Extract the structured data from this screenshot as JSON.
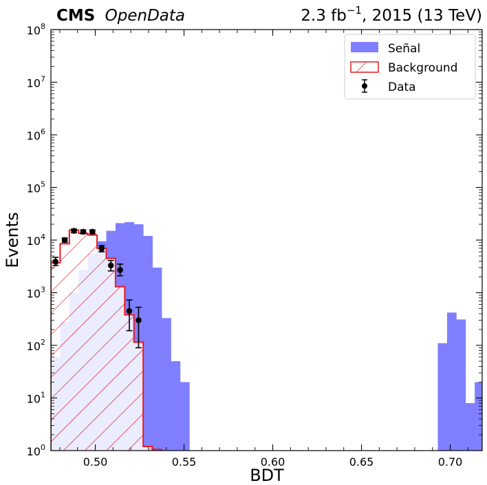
{
  "chart_data": {
    "type": "bar",
    "header": {
      "experiment": "CMS",
      "label": "OpenData",
      "lumi_prefix": "2.3 fb",
      "lumi_exponent": "−1",
      "lumi_suffix": ", 2015 (13 TeV)"
    },
    "xlabel": "BDT",
    "ylabel": "Events",
    "xlim": [
      0.475,
      0.718
    ],
    "ylim": [
      1,
      100000000
    ],
    "yscale": "log",
    "bin_width": 0.0052,
    "x_ticks": [
      {
        "value": 0.5,
        "label": "0.50"
      },
      {
        "value": 0.55,
        "label": "0.55"
      },
      {
        "value": 0.6,
        "label": "0.60"
      },
      {
        "value": 0.65,
        "label": "0.65"
      },
      {
        "value": 0.7,
        "label": "0.70"
      }
    ],
    "y_ticks": [
      {
        "value": 1,
        "base": "10",
        "exp": "0"
      },
      {
        "value": 10,
        "base": "10",
        "exp": "1"
      },
      {
        "value": 100,
        "base": "10",
        "exp": "2"
      },
      {
        "value": 1000,
        "base": "10",
        "exp": "3"
      },
      {
        "value": 10000,
        "base": "10",
        "exp": "4"
      },
      {
        "value": 100000,
        "base": "10",
        "exp": "5"
      },
      {
        "value": 1000000,
        "base": "10",
        "exp": "6"
      },
      {
        "value": 10000000,
        "base": "10",
        "exp": "7"
      },
      {
        "value": 100000000,
        "base": "10",
        "exp": "8"
      }
    ],
    "legend": {
      "position": "top-right",
      "items": [
        {
          "key": "signal",
          "label": "Señal"
        },
        {
          "key": "background",
          "label": "Background"
        },
        {
          "key": "data",
          "label": "Data"
        }
      ]
    },
    "colors": {
      "signal": "#7f7fff",
      "background": "#e8191f",
      "data": "#000000"
    },
    "signal": [
      {
        "x0": 0.475,
        "x1": 0.4802,
        "y": 60
      },
      {
        "x0": 0.4802,
        "x1": 0.4854,
        "y": 280
      },
      {
        "x0": 0.4854,
        "x1": 0.4906,
        "y": 1000
      },
      {
        "x0": 0.4906,
        "x1": 0.4958,
        "y": 2700
      },
      {
        "x0": 0.4958,
        "x1": 0.501,
        "y": 5500
      },
      {
        "x0": 0.501,
        "x1": 0.5062,
        "y": 9500
      },
      {
        "x0": 0.5062,
        "x1": 0.5114,
        "y": 15000
      },
      {
        "x0": 0.5114,
        "x1": 0.5166,
        "y": 21000
      },
      {
        "x0": 0.5166,
        "x1": 0.5218,
        "y": 22000
      },
      {
        "x0": 0.5218,
        "x1": 0.527,
        "y": 20000
      },
      {
        "x0": 0.527,
        "x1": 0.5322,
        "y": 12000
      },
      {
        "x0": 0.5322,
        "x1": 0.5374,
        "y": 3000
      },
      {
        "x0": 0.5374,
        "x1": 0.5426,
        "y": 330
      },
      {
        "x0": 0.5426,
        "x1": 0.5478,
        "y": 50
      },
      {
        "x0": 0.5478,
        "x1": 0.553,
        "y": 20
      },
      {
        "x0": 0.693,
        "x1": 0.6982,
        "y": 110
      },
      {
        "x0": 0.6982,
        "x1": 0.7034,
        "y": 420
      },
      {
        "x0": 0.7034,
        "x1": 0.7086,
        "y": 310
      },
      {
        "x0": 0.7086,
        "x1": 0.7138,
        "y": 8
      },
      {
        "x0": 0.7138,
        "x1": 0.718,
        "y": 20
      }
    ],
    "background": [
      {
        "x0": 0.475,
        "x1": 0.4802,
        "y": 3700
      },
      {
        "x0": 0.4802,
        "x1": 0.4854,
        "y": 8500
      },
      {
        "x0": 0.4854,
        "x1": 0.4906,
        "y": 15500
      },
      {
        "x0": 0.4906,
        "x1": 0.4958,
        "y": 13500
      },
      {
        "x0": 0.4958,
        "x1": 0.501,
        "y": 12500
      },
      {
        "x0": 0.501,
        "x1": 0.5062,
        "y": 7000
      },
      {
        "x0": 0.5062,
        "x1": 0.5114,
        "y": 4500
      },
      {
        "x0": 0.5114,
        "x1": 0.5166,
        "y": 1300
      },
      {
        "x0": 0.5166,
        "x1": 0.5218,
        "y": 380
      },
      {
        "x0": 0.5218,
        "x1": 0.527,
        "y": 115
      },
      {
        "x0": 0.527,
        "x1": 0.5322,
        "y": 1.2
      },
      {
        "x0": 0.5322,
        "x1": 0.5374,
        "y": 1.05
      }
    ],
    "data": [
      {
        "x": 0.4776,
        "y": 3900,
        "lo": 3300,
        "hi": 4700
      },
      {
        "x": 0.4828,
        "y": 10000,
        "lo": 9100,
        "hi": 11000
      },
      {
        "x": 0.488,
        "y": 15000,
        "lo": 13800,
        "hi": 16200
      },
      {
        "x": 0.4932,
        "y": 14400,
        "lo": 13200,
        "hi": 15600
      },
      {
        "x": 0.4984,
        "y": 14400,
        "lo": 13200,
        "hi": 15600
      },
      {
        "x": 0.5036,
        "y": 6900,
        "lo": 6000,
        "hi": 7900
      },
      {
        "x": 0.5088,
        "y": 3300,
        "lo": 2600,
        "hi": 4100
      },
      {
        "x": 0.514,
        "y": 2700,
        "lo": 2100,
        "hi": 3500
      },
      {
        "x": 0.5192,
        "y": 450,
        "lo": 190,
        "hi": 730
      },
      {
        "x": 0.5244,
        "y": 300,
        "lo": 90,
        "hi": 530
      }
    ]
  }
}
